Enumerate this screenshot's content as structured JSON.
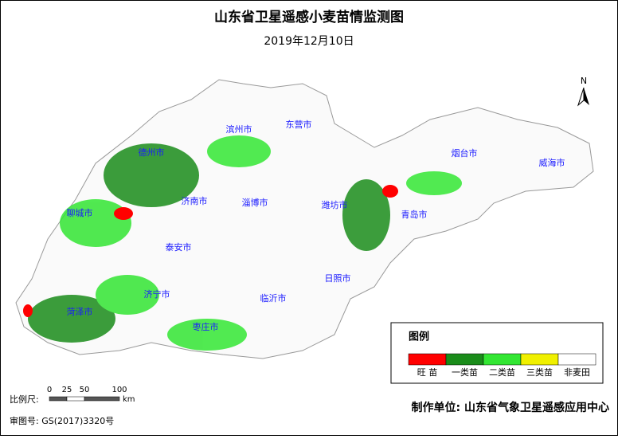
{
  "header": {
    "title": "山东省卫星遥感小麦苗情监测图",
    "date": "2019年12月10日"
  },
  "cities": [
    {
      "name": "滨州市"
    },
    {
      "name": "东营市"
    },
    {
      "name": "德州市"
    },
    {
      "name": "烟台市"
    },
    {
      "name": "威海市"
    },
    {
      "name": "济南市"
    },
    {
      "name": "淄博市"
    },
    {
      "name": "潍坊市"
    },
    {
      "name": "聊城市"
    },
    {
      "name": "青岛市"
    },
    {
      "name": "泰安市"
    },
    {
      "name": "日照市"
    },
    {
      "name": "济宁市"
    },
    {
      "name": "临沂市"
    },
    {
      "name": "菏泽市"
    },
    {
      "name": "枣庄市"
    }
  ],
  "legend": {
    "title": "图例",
    "items": [
      {
        "label": "旺 苗",
        "color": "#ff0000"
      },
      {
        "label": "一类苗",
        "color": "#1a8c1a"
      },
      {
        "label": "二类苗",
        "color": "#33e633"
      },
      {
        "label": "三类苗",
        "color": "#f0f000"
      },
      {
        "label": "非麦田",
        "color": "#ffffff"
      }
    ]
  },
  "scale": {
    "label": "比例尺:",
    "ticks": [
      0,
      25,
      50,
      100
    ],
    "unit": "km"
  },
  "north": "N",
  "producer": "制作单位: 山东省气象卫星遥感应用中心",
  "review": "审图号: GS(2017)3320号"
}
